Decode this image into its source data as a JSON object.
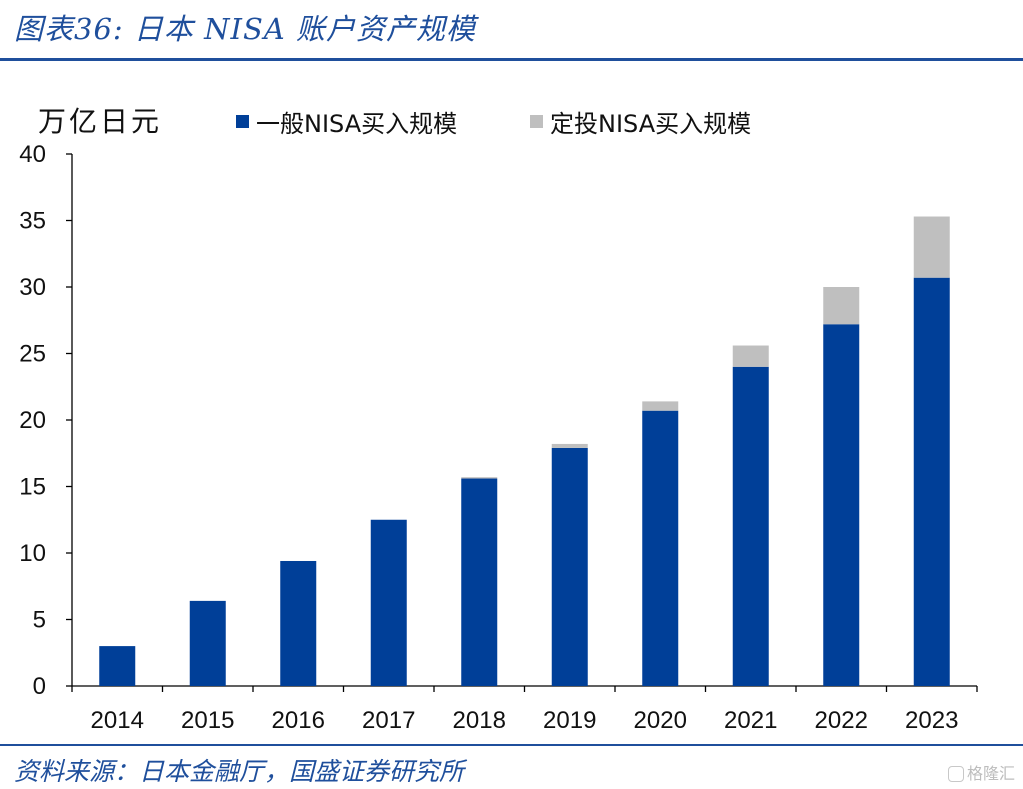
{
  "header": {
    "title": "图表36: 日本 NISA 账户资产规模"
  },
  "footer": {
    "source": "资料来源：日本金融厅，国盛证券研究所",
    "watermark": "格隆汇"
  },
  "colors": {
    "accent": "#1f4f9c",
    "series_general": "#003f98",
    "series_tsumitate": "#bfbfbf"
  },
  "chart_data": {
    "type": "bar",
    "stacked": true,
    "y_unit_label": "万亿日元",
    "categories": [
      "2014",
      "2015",
      "2016",
      "2017",
      "2018",
      "2019",
      "2020",
      "2021",
      "2022",
      "2023"
    ],
    "series": [
      {
        "name": "一般NISA买入规模",
        "values": [
          3.0,
          6.4,
          9.4,
          12.5,
          15.6,
          17.9,
          20.7,
          24.0,
          27.2,
          30.7
        ]
      },
      {
        "name": "定投NISA买入规模",
        "values": [
          0,
          0,
          0,
          0,
          0.1,
          0.3,
          0.7,
          1.6,
          2.8,
          4.6
        ]
      }
    ],
    "ylim": [
      0,
      40
    ],
    "yticks": [
      0,
      5,
      10,
      15,
      20,
      25,
      30,
      35,
      40
    ],
    "grid": false,
    "legend_position": "top"
  }
}
